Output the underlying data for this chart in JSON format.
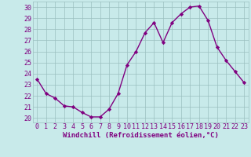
{
  "x": [
    0,
    1,
    2,
    3,
    4,
    5,
    6,
    7,
    8,
    9,
    10,
    11,
    12,
    13,
    14,
    15,
    16,
    17,
    18,
    19,
    20,
    21,
    22,
    23
  ],
  "y": [
    23.5,
    22.2,
    21.8,
    21.1,
    21.0,
    20.5,
    20.1,
    20.1,
    20.8,
    22.2,
    24.8,
    26.0,
    27.7,
    28.6,
    26.8,
    28.6,
    29.4,
    30.0,
    30.1,
    28.8,
    26.4,
    25.2,
    24.2,
    23.2
  ],
  "line_color": "#800080",
  "marker": "D",
  "markersize": 2.2,
  "linewidth": 1.0,
  "bg_color": "#c8eaea",
  "grid_color": "#9bbfbf",
  "xlabel": "Windchill (Refroidissement éolien,°C)",
  "xlabel_fontsize": 6.5,
  "ylabel_ticks": [
    20,
    21,
    22,
    23,
    24,
    25,
    26,
    27,
    28,
    29,
    30
  ],
  "xlim": [
    -0.5,
    23.5
  ],
  "ylim": [
    19.6,
    30.5
  ],
  "tick_fontsize": 6.0,
  "label_color": "#800080"
}
